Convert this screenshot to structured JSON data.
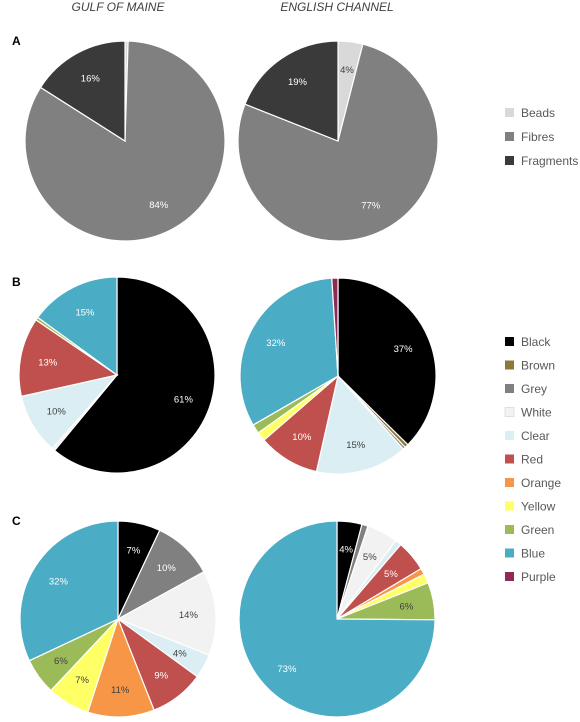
{
  "columns": [
    "GULF OF MAINE",
    "ENGLISH CHANNEL"
  ],
  "colors": {
    "Beads": "#d9d9d9",
    "Fibres": "#808080",
    "Fragments": "#3a3a3a",
    "Black": "#000000",
    "Brown": "#8c7a3a",
    "Grey": "#808080",
    "White": "#f2f2f2",
    "Clear": "#dbeef4",
    "Red": "#c0504d",
    "Orange": "#f79646",
    "Yellow": "#ffff66",
    "Green": "#9bbb59",
    "Blue": "#4bacc6",
    "Purple": "#8e2a55"
  },
  "chart_data": [
    {
      "type": "pie",
      "panel": "A",
      "column": "GULF OF MAINE",
      "categories": [
        "Beads",
        "Fibres",
        "Fragments"
      ],
      "values": [
        0.5,
        83.5,
        16
      ],
      "labels": [
        "",
        "84%",
        "16%"
      ]
    },
    {
      "type": "pie",
      "panel": "A",
      "column": "ENGLISH CHANNEL",
      "categories": [
        "Beads",
        "Fibres",
        "Fragments"
      ],
      "values": [
        4,
        77,
        19
      ],
      "labels": [
        "4%",
        "77%",
        "19%"
      ]
    },
    {
      "type": "pie",
      "panel": "B",
      "column": "GULF OF MAINE",
      "categories": [
        "Black",
        "Brown",
        "Grey",
        "White",
        "Clear",
        "Red",
        "Orange",
        "Yellow",
        "Green",
        "Blue",
        "Purple"
      ],
      "values": [
        61,
        0,
        0,
        0.5,
        10,
        13,
        0,
        0,
        0.5,
        15,
        0
      ],
      "labels": [
        "61%",
        "",
        "",
        "",
        "10%",
        "13%",
        "",
        "",
        "",
        "15%",
        ""
      ]
    },
    {
      "type": "pie",
      "panel": "B",
      "column": "ENGLISH CHANNEL",
      "categories": [
        "Black",
        "Brown",
        "Grey",
        "White",
        "Clear",
        "Red",
        "Orange",
        "Yellow",
        "Green",
        "Blue",
        "Purple"
      ],
      "values": [
        37,
        0.6,
        0.4,
        0,
        15,
        10,
        0,
        1.5,
        1.5,
        32,
        1
      ],
      "labels": [
        "37%",
        "",
        "",
        "",
        "15%",
        "10%",
        "",
        "",
        "",
        "32%",
        ""
      ]
    },
    {
      "type": "pie",
      "panel": "C",
      "column": "GULF OF MAINE",
      "categories": [
        "Black",
        "Brown",
        "Grey",
        "White",
        "Clear",
        "Red",
        "Orange",
        "Yellow",
        "Green",
        "Blue",
        "Purple"
      ],
      "values": [
        7,
        0,
        10,
        14,
        4,
        9,
        11,
        7,
        6,
        32,
        0
      ],
      "labels": [
        "7%",
        "",
        "10%",
        "14%",
        "4%",
        "9%",
        "11%",
        "7%",
        "6%",
        "32%",
        ""
      ]
    },
    {
      "type": "pie",
      "panel": "C",
      "column": "ENGLISH CHANNEL",
      "categories": [
        "Black",
        "Brown",
        "Grey",
        "White",
        "Clear",
        "Red",
        "Orange",
        "Yellow",
        "Green",
        "Blue",
        "Purple"
      ],
      "values": [
        4,
        0,
        1,
        5,
        1,
        5,
        1,
        1.5,
        6,
        73,
        0
      ],
      "labels": [
        "4%",
        "",
        "",
        "5%",
        "",
        "5%",
        "",
        "",
        "6%",
        "73%",
        ""
      ]
    }
  ],
  "legends": [
    {
      "panel": "A",
      "items": [
        "Beads",
        "Fibres",
        "Fragments"
      ]
    },
    {
      "panel": "B/C",
      "items": [
        "Black",
        "Brown",
        "Grey",
        "White",
        "Clear",
        "Red",
        "Orange",
        "Yellow",
        "Green",
        "Blue",
        "Purple"
      ]
    }
  ]
}
